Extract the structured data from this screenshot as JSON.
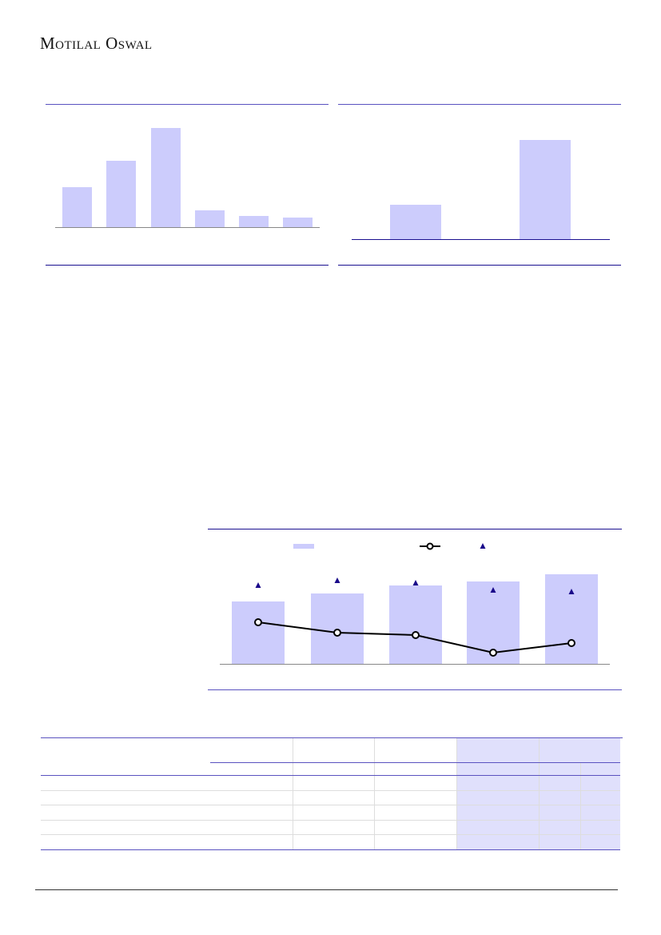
{
  "header": {
    "logo_text": "Motilal Oswal"
  },
  "colors": {
    "bar": "#ccccfc",
    "rule": "#5a52c0",
    "triangle": "#1a0a8a",
    "line": "#000000",
    "table_shade": "#e0e0fc"
  },
  "chart_data": [
    {
      "type": "bar",
      "categories": [
        "",
        "",
        "",
        "",
        "",
        ""
      ],
      "values": [
        50,
        83,
        124,
        21,
        14,
        12
      ]
    },
    {
      "type": "bar",
      "categories": [
        "",
        ""
      ],
      "values": [
        43,
        124
      ]
    },
    {
      "type": "bar+line",
      "categories": [
        "",
        "",
        "",
        "",
        ""
      ],
      "series": [
        {
          "type": "bar",
          "values": [
            78,
            88,
            98,
            103,
            112
          ]
        },
        {
          "type": "line",
          "marker": "circle",
          "values": [
            52,
            39,
            36,
            14,
            26
          ]
        },
        {
          "type": "scatter",
          "marker": "triangle",
          "values": [
            98,
            104,
            101,
            92,
            90
          ]
        }
      ],
      "legend": "top"
    }
  ],
  "table": {
    "rows": 5,
    "shaded_columns": 2
  }
}
